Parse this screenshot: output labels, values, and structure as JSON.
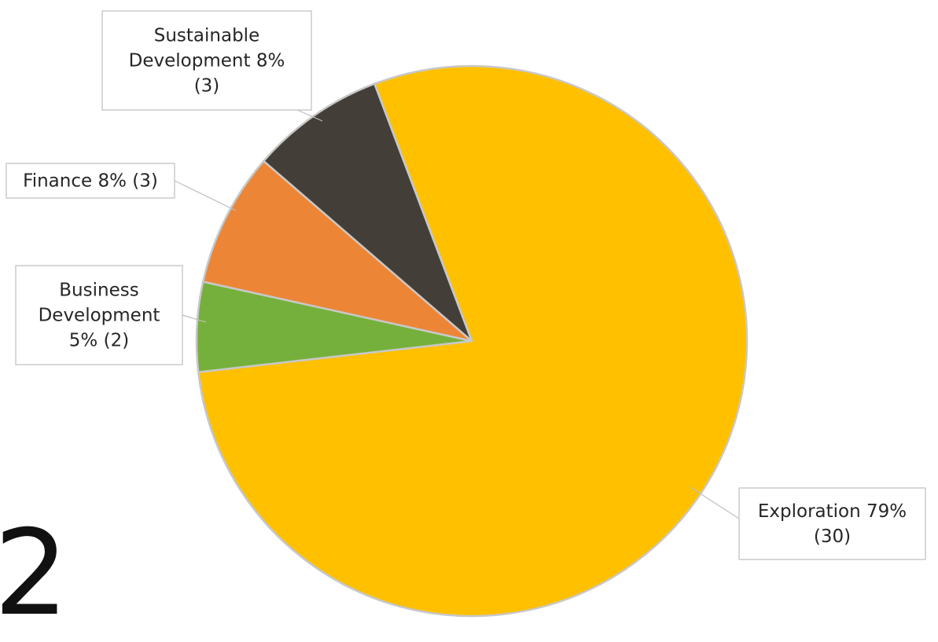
{
  "chart_data": {
    "type": "pie",
    "title": "",
    "start_angle_deg": 339.3,
    "direction": "clockwise",
    "slices": [
      {
        "category": "Exploration",
        "percent_label": "79%",
        "value": 30,
        "color": "#FFC000"
      },
      {
        "category": "Business Development",
        "percent_label": "5%",
        "value": 2,
        "color": "#76B03C"
      },
      {
        "category": "Finance",
        "percent_label": "8%",
        "value": 3,
        "color": "#ED8536"
      },
      {
        "category": "Sustainable Development",
        "percent_label": "8%",
        "value": 3,
        "color": "#433F38"
      }
    ],
    "data_labels": [
      {
        "lines": [
          "Exploration 79%",
          "(30)"
        ]
      },
      {
        "lines": [
          "Business",
          "Development",
          "5% (2)"
        ]
      },
      {
        "lines": [
          "Finance 8% (3)"
        ]
      },
      {
        "lines": [
          "Sustainable",
          "Development 8%",
          "(3)"
        ]
      }
    ],
    "slice_border_color": "#C8C8C8",
    "label_border_color": "#BFBFBF",
    "leader_line_color": "#BFBFBF"
  },
  "corner_glyph": "2"
}
